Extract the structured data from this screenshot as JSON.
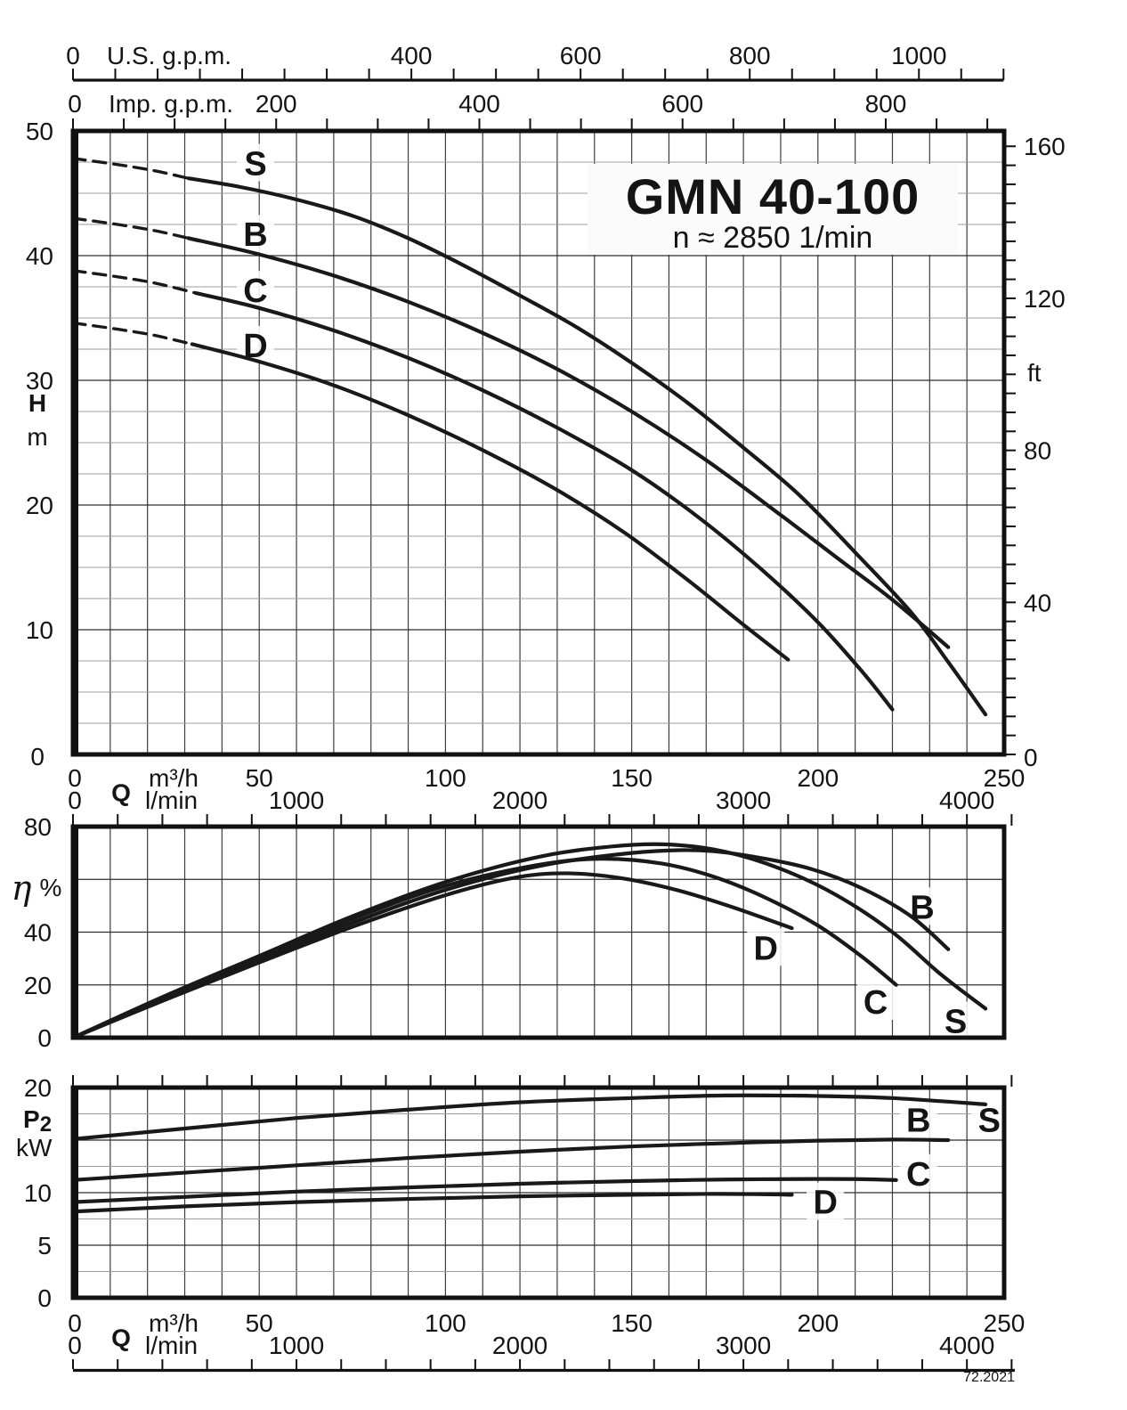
{
  "title": {
    "model": "GMN 40-100",
    "speed": "n ≈ 2850 1/min"
  },
  "footer": {
    "code": "72.2021"
  },
  "axes": {
    "us_gpm": {
      "zero": "0",
      "name": "U.S. g.p.m.",
      "labels": [
        400,
        600,
        800,
        1000
      ],
      "tick_step_gpm": 50,
      "max_gpm": 1100,
      "m3h_per_gpm": 0.22712
    },
    "imp_gpm": {
      "zero": "0",
      "name": "Imp. g.p.m.",
      "labels": [
        200,
        400,
        600,
        800
      ],
      "tick_step_gpm": 50,
      "max_gpm": 900,
      "m3h_per_gpm": 0.27276
    },
    "head": {
      "symbol": "H",
      "unit": "m",
      "labels": [
        50,
        40,
        30,
        20,
        10,
        0
      ],
      "max_m": 50
    },
    "feet": {
      "unit": "ft",
      "labels": [
        160,
        120,
        80,
        40,
        0
      ],
      "tick_step_ft": 5,
      "max_ft": 164,
      "m_per_ft": 0.3048
    },
    "flow": {
      "symbol": "Q",
      "unit_top": "m³/h",
      "unit_bottom": "l/min",
      "zero_top": "0",
      "zero_bottom": "0",
      "labels_m3h": [
        50,
        100,
        150,
        200,
        250
      ],
      "labels_lmin": [
        1000,
        2000,
        3000,
        4000
      ],
      "max_m3h": 250,
      "lmin_tick_step": 200,
      "lmin_tick_max": 4200
    },
    "eta": {
      "symbol": "η",
      "unit": "%",
      "labels": [
        80,
        40,
        20,
        0
      ],
      "max_pct": 80
    },
    "power": {
      "symbol": "P",
      "symbol_sub": "2",
      "unit": "kW",
      "labels": [
        20,
        10,
        5,
        0
      ],
      "max_kw": 20
    }
  },
  "chart_data": [
    {
      "id": "head-flow",
      "type": "line",
      "title": "Head vs flow",
      "xlabel": "Q (m³/h)",
      "ylabel": "H (m)",
      "xlim": [
        0,
        250
      ],
      "ylim": [
        0,
        50
      ],
      "grid": true,
      "series": [
        {
          "name": "S",
          "dashed": [
            [
              0,
              47.8
            ],
            [
              12,
              47.3
            ],
            [
              22,
              46.8
            ],
            [
              31,
              46.2
            ]
          ],
          "points": [
            [
              31,
              46.2
            ],
            [
              45,
              45.5
            ],
            [
              60,
              44.5
            ],
            [
              75,
              43.2
            ],
            [
              90,
              41.4
            ],
            [
              105,
              39.2
            ],
            [
              120,
              36.8
            ],
            [
              135,
              34.3
            ],
            [
              150,
              31.4
            ],
            [
              165,
              28.2
            ],
            [
              180,
              24.6
            ],
            [
              195,
              20.8
            ],
            [
              210,
              16.2
            ],
            [
              225,
              11.4
            ],
            [
              235,
              7.4
            ],
            [
              245,
              3.2
            ]
          ],
          "label_at": [
            49,
            47.4
          ]
        },
        {
          "name": "B",
          "dashed": [
            [
              0,
              43.0
            ],
            [
              12,
              42.5
            ],
            [
              22,
              42.0
            ],
            [
              31,
              41.4
            ]
          ],
          "points": [
            [
              31,
              41.4
            ],
            [
              50,
              40.1
            ],
            [
              70,
              38.4
            ],
            [
              90,
              36.3
            ],
            [
              110,
              33.8
            ],
            [
              130,
              30.9
            ],
            [
              150,
              27.5
            ],
            [
              170,
              23.6
            ],
            [
              190,
              19.2
            ],
            [
              205,
              15.8
            ],
            [
              220,
              12.4
            ],
            [
              235,
              8.6
            ]
          ],
          "label_at": [
            49,
            41.7
          ]
        },
        {
          "name": "C",
          "dashed": [
            [
              0,
              38.8
            ],
            [
              12,
              38.3
            ],
            [
              22,
              37.8
            ],
            [
              33,
              37.0
            ]
          ],
          "points": [
            [
              33,
              37.0
            ],
            [
              50,
              35.8
            ],
            [
              70,
              34.0
            ],
            [
              90,
              31.8
            ],
            [
              110,
              29.2
            ],
            [
              130,
              26.2
            ],
            [
              150,
              22.8
            ],
            [
              168,
              19.0
            ],
            [
              185,
              14.8
            ],
            [
              200,
              10.6
            ],
            [
              212,
              6.6
            ],
            [
              220,
              3.6
            ]
          ],
          "label_at": [
            49,
            37.2
          ]
        },
        {
          "name": "D",
          "dashed": [
            [
              0,
              34.6
            ],
            [
              12,
              34.1
            ],
            [
              22,
              33.6
            ],
            [
              32,
              32.9
            ]
          ],
          "points": [
            [
              32,
              32.9
            ],
            [
              50,
              31.5
            ],
            [
              70,
              29.6
            ],
            [
              90,
              27.2
            ],
            [
              110,
              24.4
            ],
            [
              130,
              21.2
            ],
            [
              148,
              17.8
            ],
            [
              165,
              14.0
            ],
            [
              180,
              10.4
            ],
            [
              192,
              7.6
            ]
          ],
          "label_at": [
            49,
            32.8
          ]
        }
      ]
    },
    {
      "id": "efficiency-flow",
      "type": "line",
      "title": "Efficiency vs flow",
      "xlabel": "Q (m³/h)",
      "ylabel": "η (%)",
      "xlim": [
        0,
        250
      ],
      "ylim": [
        0,
        80
      ],
      "grid": true,
      "series": [
        {
          "name": "S",
          "points": [
            [
              0,
              0
            ],
            [
              25,
              16
            ],
            [
              50,
              31
            ],
            [
              75,
              46
            ],
            [
              100,
              59
            ],
            [
              125,
              68.5
            ],
            [
              145,
              72.5
            ],
            [
              160,
              73.2
            ],
            [
              175,
              70.5
            ],
            [
              190,
              64
            ],
            [
              205,
              54
            ],
            [
              220,
              40
            ],
            [
              233,
              24
            ],
            [
              245,
              11
            ]
          ],
          "label_at": [
            237,
            6.2
          ]
        },
        {
          "name": "B",
          "points": [
            [
              0,
              0
            ],
            [
              25,
              15
            ],
            [
              50,
              29.5
            ],
            [
              75,
              43.5
            ],
            [
              100,
              56
            ],
            [
              125,
              65
            ],
            [
              150,
              70
            ],
            [
              168,
              71
            ],
            [
              183,
              68.5
            ],
            [
              198,
              64
            ],
            [
              212,
              56.5
            ],
            [
              225,
              46
            ],
            [
              235,
              33.5
            ]
          ],
          "label_at": [
            228,
            49.5
          ]
        },
        {
          "name": "C",
          "points": [
            [
              0,
              0
            ],
            [
              25,
              15.5
            ],
            [
              50,
              30.5
            ],
            [
              75,
              45
            ],
            [
              100,
              57.5
            ],
            [
              125,
              65.5
            ],
            [
              142,
              67.8
            ],
            [
              158,
              66
            ],
            [
              172,
              61
            ],
            [
              186,
              53
            ],
            [
              200,
              42.5
            ],
            [
              212,
              30.5
            ],
            [
              221,
              20
            ]
          ],
          "label_at": [
            215.5,
            13.5
          ]
        },
        {
          "name": "D",
          "points": [
            [
              0,
              0
            ],
            [
              25,
              14.5
            ],
            [
              50,
              28.5
            ],
            [
              75,
              42
            ],
            [
              100,
              54
            ],
            [
              118,
              60.5
            ],
            [
              132,
              62.3
            ],
            [
              147,
              60.5
            ],
            [
              162,
              56
            ],
            [
              177,
              49.5
            ],
            [
              193,
              41.5
            ]
          ],
          "label_at": [
            186,
            34
          ]
        }
      ]
    },
    {
      "id": "power-flow",
      "type": "line",
      "title": "Shaft power vs flow",
      "xlabel": "Q (m³/h)",
      "ylabel": "P2 (kW)",
      "xlim": [
        0,
        250
      ],
      "ylim": [
        0,
        20
      ],
      "grid": true,
      "series": [
        {
          "name": "S",
          "points": [
            [
              0,
              15.1
            ],
            [
              30,
              16.1
            ],
            [
              60,
              17.1
            ],
            [
              90,
              17.9
            ],
            [
              120,
              18.6
            ],
            [
              150,
              19.0
            ],
            [
              175,
              19.25
            ],
            [
              200,
              19.2
            ],
            [
              220,
              19.0
            ],
            [
              245,
              18.4
            ]
          ],
          "label_at": [
            246,
            16.9
          ]
        },
        {
          "name": "B",
          "points": [
            [
              0,
              11.2
            ],
            [
              30,
              11.9
            ],
            [
              60,
              12.6
            ],
            [
              90,
              13.3
            ],
            [
              120,
              13.9
            ],
            [
              150,
              14.4
            ],
            [
              175,
              14.7
            ],
            [
              200,
              14.95
            ],
            [
              220,
              15.05
            ],
            [
              235,
              15.0
            ]
          ],
          "label_at": [
            227,
            16.9
          ]
        },
        {
          "name": "C",
          "points": [
            [
              0,
              9.1
            ],
            [
              30,
              9.6
            ],
            [
              60,
              10.1
            ],
            [
              90,
              10.5
            ],
            [
              120,
              10.85
            ],
            [
              150,
              11.1
            ],
            [
              175,
              11.25
            ],
            [
              200,
              11.3
            ],
            [
              212,
              11.28
            ],
            [
              221,
              11.2
            ]
          ],
          "label_at": [
            227,
            11.8
          ]
        },
        {
          "name": "D",
          "points": [
            [
              0,
              8.2
            ],
            [
              30,
              8.7
            ],
            [
              60,
              9.1
            ],
            [
              90,
              9.4
            ],
            [
              120,
              9.65
            ],
            [
              150,
              9.8
            ],
            [
              170,
              9.88
            ],
            [
              185,
              9.85
            ],
            [
              193,
              9.8
            ]
          ],
          "label_at": [
            202,
            9.1
          ]
        }
      ]
    }
  ]
}
